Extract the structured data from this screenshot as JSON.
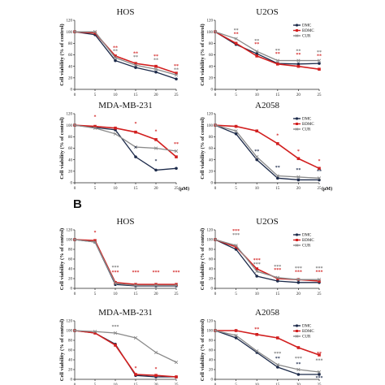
{
  "page": {
    "panel_letters": [
      "",
      "B"
    ]
  },
  "colors": {
    "DMC": "#1c2a4a",
    "BDMC": "#d21f1f",
    "CUR": "#8a8a8a",
    "star_DMC": "#1c2a4a",
    "star_BDMC": "#d21f1f",
    "star_CUR": "#777777"
  },
  "chart_data": [
    {
      "type": "line",
      "id": "A-HOS",
      "title": "HOS",
      "x": [
        0,
        5,
        10,
        15,
        20,
        25
      ],
      "ylim": [
        0,
        120
      ],
      "yticks": [
        0,
        20,
        40,
        60,
        80,
        100,
        120
      ],
      "ylabel": "Cell viability (% of control)",
      "unit": "",
      "legend": [],
      "series": [
        {
          "name": "DMC",
          "values": [
            100,
            95,
            50,
            38,
            30,
            18
          ]
        },
        {
          "name": "BDMC",
          "values": [
            100,
            98,
            58,
            45,
            40,
            28
          ]
        },
        {
          "name": "CUR",
          "values": [
            100,
            100,
            55,
            42,
            35,
            25
          ]
        }
      ],
      "annotations": [
        {
          "x": 10,
          "y": 70,
          "text": "**",
          "series": "BDMC"
        },
        {
          "x": 10,
          "y": 64,
          "text": "**",
          "series": "CUR"
        },
        {
          "x": 15,
          "y": 60,
          "text": "**",
          "series": "BDMC"
        },
        {
          "x": 15,
          "y": 54,
          "text": "**",
          "series": "CUR"
        },
        {
          "x": 20,
          "y": 55,
          "text": "**",
          "series": "BDMC"
        },
        {
          "x": 20,
          "y": 49,
          "text": "**",
          "series": "CUR"
        },
        {
          "x": 25,
          "y": 38,
          "text": "**",
          "series": "BDMC"
        },
        {
          "x": 25,
          "y": 32,
          "text": "**",
          "series": "CUR"
        }
      ]
    },
    {
      "type": "line",
      "id": "A-U2OS",
      "title": "U2OS",
      "x": [
        0,
        5,
        10,
        15,
        20,
        25
      ],
      "ylim": [
        0,
        120
      ],
      "yticks": [
        0,
        20,
        40,
        60,
        80,
        100,
        120
      ],
      "ylabel": "Cell viability (% of control)",
      "unit": "",
      "legend": [
        "DMC",
        "BDMC",
        "CUR"
      ],
      "series": [
        {
          "name": "DMC",
          "values": [
            100,
            78,
            62,
            45,
            44,
            45
          ]
        },
        {
          "name": "BDMC",
          "values": [
            100,
            80,
            58,
            44,
            40,
            35
          ]
        },
        {
          "name": "CUR",
          "values": [
            100,
            88,
            66,
            50,
            50,
            50
          ]
        }
      ],
      "annotations": [
        {
          "x": 5,
          "y": 100,
          "text": "**",
          "series": "CUR"
        },
        {
          "x": 5,
          "y": 94,
          "text": "**",
          "series": "BDMC"
        },
        {
          "x": 10,
          "y": 82,
          "text": "**",
          "series": "CUR"
        },
        {
          "x": 10,
          "y": 76,
          "text": "**",
          "series": "BDMC"
        },
        {
          "x": 15,
          "y": 65,
          "text": "**",
          "series": "CUR"
        },
        {
          "x": 15,
          "y": 59,
          "text": "**",
          "series": "BDMC"
        },
        {
          "x": 20,
          "y": 64,
          "text": "**",
          "series": "CUR"
        },
        {
          "x": 20,
          "y": 58,
          "text": "**",
          "series": "BDMC"
        },
        {
          "x": 25,
          "y": 62,
          "text": "**",
          "series": "CUR"
        },
        {
          "x": 25,
          "y": 56,
          "text": "**",
          "series": "BDMC"
        }
      ]
    },
    {
      "type": "line",
      "id": "A-MDA",
      "title": "MDA-MB-231",
      "x": [
        0,
        5,
        10,
        15,
        20,
        25
      ],
      "ylim": [
        0,
        120
      ],
      "yticks": [
        0,
        20,
        40,
        60,
        80,
        100,
        120
      ],
      "ylabel": "Cell viability (% of control)",
      "unit": "(μM)",
      "legend": [],
      "series": [
        {
          "name": "DMC",
          "values": [
            100,
            96,
            92,
            45,
            22,
            25
          ]
        },
        {
          "name": "BDMC",
          "values": [
            100,
            98,
            95,
            88,
            75,
            45
          ]
        },
        {
          "name": "CUR",
          "values": [
            100,
            95,
            85,
            62,
            60,
            55
          ]
        }
      ],
      "annotations": [
        {
          "x": 5,
          "y": 112,
          "text": "*",
          "series": "BDMC"
        },
        {
          "x": 15,
          "y": 58,
          "text": "*",
          "series": "DMC"
        },
        {
          "x": 15,
          "y": 100,
          "text": "*",
          "series": "BDMC"
        },
        {
          "x": 20,
          "y": 35,
          "text": "*",
          "series": "DMC"
        },
        {
          "x": 20,
          "y": 87,
          "text": "*",
          "series": "BDMC"
        },
        {
          "x": 25,
          "y": 65,
          "text": "**",
          "series": "BDMC"
        }
      ]
    },
    {
      "type": "line",
      "id": "A-A2058",
      "title": "A2058",
      "x": [
        0,
        5,
        10,
        15,
        20,
        25
      ],
      "ylim": [
        0,
        120
      ],
      "yticks": [
        0,
        20,
        40,
        60,
        80,
        100,
        120
      ],
      "ylabel": "Cell viability (% of control)",
      "unit": "(μM)",
      "legend": [
        "DMC",
        "BDMC",
        "CUR"
      ],
      "series": [
        {
          "name": "DMC",
          "values": [
            100,
            85,
            40,
            8,
            5,
            5
          ]
        },
        {
          "name": "BDMC",
          "values": [
            100,
            98,
            90,
            68,
            42,
            25
          ]
        },
        {
          "name": "CUR",
          "values": [
            100,
            90,
            45,
            12,
            10,
            8
          ]
        }
      ],
      "annotations": [
        {
          "x": 10,
          "y": 52,
          "text": "**",
          "series": "DMC"
        },
        {
          "x": 15,
          "y": 80,
          "text": "*",
          "series": "BDMC"
        },
        {
          "x": 15,
          "y": 24,
          "text": "**",
          "series": "DMC"
        },
        {
          "x": 20,
          "y": 52,
          "text": "*",
          "series": "BDMC"
        },
        {
          "x": 20,
          "y": 20,
          "text": "**",
          "series": "DMC"
        },
        {
          "x": 25,
          "y": 35,
          "text": "*",
          "series": "BDMC"
        },
        {
          "x": 25,
          "y": 18,
          "text": "**",
          "series": "DMC"
        }
      ]
    },
    {
      "type": "line",
      "id": "B-HOS",
      "title": "HOS",
      "x": [
        0,
        5,
        10,
        15,
        20,
        25
      ],
      "ylim": [
        0,
        120
      ],
      "yticks": [
        0,
        20,
        40,
        60,
        80,
        100,
        120
      ],
      "ylabel": "Cell viability (% of control)",
      "unit": "",
      "legend": [],
      "series": [
        {
          "name": "DMC",
          "values": [
            100,
            95,
            8,
            5,
            5,
            5
          ]
        },
        {
          "name": "BDMC",
          "values": [
            100,
            98,
            12,
            8,
            8,
            8
          ]
        },
        {
          "name": "CUR",
          "values": [
            100,
            95,
            10,
            6,
            6,
            6
          ]
        }
      ],
      "annotations": [
        {
          "x": 5,
          "y": 112,
          "text": "*",
          "series": "BDMC"
        },
        {
          "x": 10,
          "y": 40,
          "text": "***",
          "series": "CUR"
        },
        {
          "x": 10,
          "y": 30,
          "text": "***",
          "series": "BDMC"
        },
        {
          "x": 15,
          "y": 30,
          "text": "***",
          "series": "BDMC"
        },
        {
          "x": 20,
          "y": 30,
          "text": "***",
          "series": "BDMC"
        },
        {
          "x": 25,
          "y": 30,
          "text": "***",
          "series": "BDMC"
        }
      ]
    },
    {
      "type": "line",
      "id": "B-U2OS",
      "title": "U2OS",
      "x": [
        0,
        5,
        10,
        15,
        20,
        25
      ],
      "ylim": [
        0,
        120
      ],
      "yticks": [
        0,
        20,
        40,
        60,
        80,
        100,
        120
      ],
      "ylabel": "Cell viability (% of control)",
      "unit": "",
      "legend": [
        "DMC",
        "BDMC",
        "CUR"
      ],
      "series": [
        {
          "name": "DMC",
          "values": [
            100,
            80,
            25,
            15,
            12,
            12
          ]
        },
        {
          "name": "BDMC",
          "values": [
            100,
            85,
            40,
            20,
            18,
            15
          ]
        },
        {
          "name": "CUR",
          "values": [
            100,
            88,
            35,
            22,
            18,
            18
          ]
        }
      ],
      "annotations": [
        {
          "x": 5,
          "y": 115,
          "text": "***",
          "series": "BDMC"
        },
        {
          "x": 5,
          "y": 107,
          "text": "***",
          "series": "CUR"
        },
        {
          "x": 10,
          "y": 55,
          "text": "***",
          "series": "BDMC"
        },
        {
          "x": 10,
          "y": 47,
          "text": "***",
          "series": "CUR"
        },
        {
          "x": 15,
          "y": 42,
          "text": "***",
          "series": "CUR"
        },
        {
          "x": 15,
          "y": 35,
          "text": "***",
          "series": "BDMC"
        },
        {
          "x": 20,
          "y": 38,
          "text": "***",
          "series": "CUR"
        },
        {
          "x": 20,
          "y": 31,
          "text": "***",
          "series": "BDMC"
        },
        {
          "x": 25,
          "y": 38,
          "text": "***",
          "series": "CUR"
        },
        {
          "x": 25,
          "y": 31,
          "text": "***",
          "series": "BDMC"
        }
      ]
    },
    {
      "type": "line",
      "id": "B-MDA",
      "title": "MDA-MB-231",
      "x": [
        0,
        5,
        10,
        15,
        20,
        25
      ],
      "ylim": [
        0,
        120
      ],
      "yticks": [
        0,
        20,
        40,
        60,
        80,
        100,
        120
      ],
      "ylabel": "Cell viability (% of control)",
      "unit": "",
      "legend": [],
      "series": [
        {
          "name": "DMC",
          "values": [
            100,
            95,
            72,
            8,
            5,
            5
          ]
        },
        {
          "name": "BDMC",
          "values": [
            100,
            95,
            70,
            10,
            8,
            5
          ]
        },
        {
          "name": "CUR",
          "values": [
            100,
            98,
            95,
            85,
            55,
            35
          ]
        }
      ],
      "annotations": [
        {
          "x": 10,
          "y": 105,
          "text": "***",
          "series": "CUR"
        },
        {
          "x": 15,
          "y": 20,
          "text": "*",
          "series": "BDMC"
        },
        {
          "x": 20,
          "y": 18,
          "text": "*",
          "series": "BDMC"
        }
      ]
    },
    {
      "type": "line",
      "id": "B-A2058",
      "title": "A2058",
      "x": [
        0,
        5,
        10,
        15,
        20,
        25
      ],
      "ylim": [
        0,
        120
      ],
      "yticks": [
        0,
        20,
        40,
        60,
        80,
        100,
        120
      ],
      "ylabel": "Cell viability (% of control)",
      "unit": "",
      "legend": [
        "DMC",
        "BDMC",
        "CUR"
      ],
      "series": [
        {
          "name": "DMC",
          "values": [
            100,
            85,
            55,
            25,
            10,
            10
          ]
        },
        {
          "name": "BDMC",
          "values": [
            100,
            100,
            92,
            85,
            65,
            50
          ]
        },
        {
          "name": "CUR",
          "values": [
            100,
            90,
            58,
            30,
            20,
            15
          ]
        }
      ],
      "annotations": [
        {
          "x": 10,
          "y": 100,
          "text": "**",
          "series": "BDMC"
        },
        {
          "x": 15,
          "y": 50,
          "text": "***",
          "series": "CUR"
        },
        {
          "x": 15,
          "y": 40,
          "text": "**",
          "series": "DMC"
        },
        {
          "x": 20,
          "y": 40,
          "text": "***",
          "series": "CUR"
        },
        {
          "x": 20,
          "y": 28,
          "text": "**",
          "series": "DMC"
        },
        {
          "x": 25,
          "y": 50,
          "text": "**",
          "series": "BDMC"
        },
        {
          "x": 25,
          "y": 36,
          "text": "***",
          "series": "CUR"
        },
        {
          "x": 25,
          "y": 0,
          "text": "***",
          "series": "DMC"
        }
      ]
    }
  ]
}
